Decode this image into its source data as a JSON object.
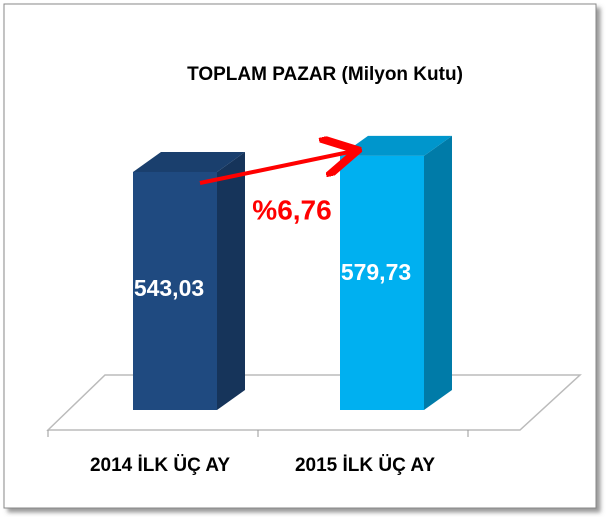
{
  "chart_data": {
    "type": "bar",
    "title": "TOPLAM PAZAR (Milyon Kutu)",
    "categories": [
      "2014 İLK ÜÇ AY",
      "2015 İLK ÜÇ AY"
    ],
    "values": [
      543.03,
      579.73
    ],
    "value_labels": [
      "543,03",
      "579,73"
    ],
    "colors": [
      "#1f4a80",
      "#00b0f0"
    ],
    "ylim": [
      0,
      600
    ],
    "annotations": [
      "%6,76"
    ]
  }
}
